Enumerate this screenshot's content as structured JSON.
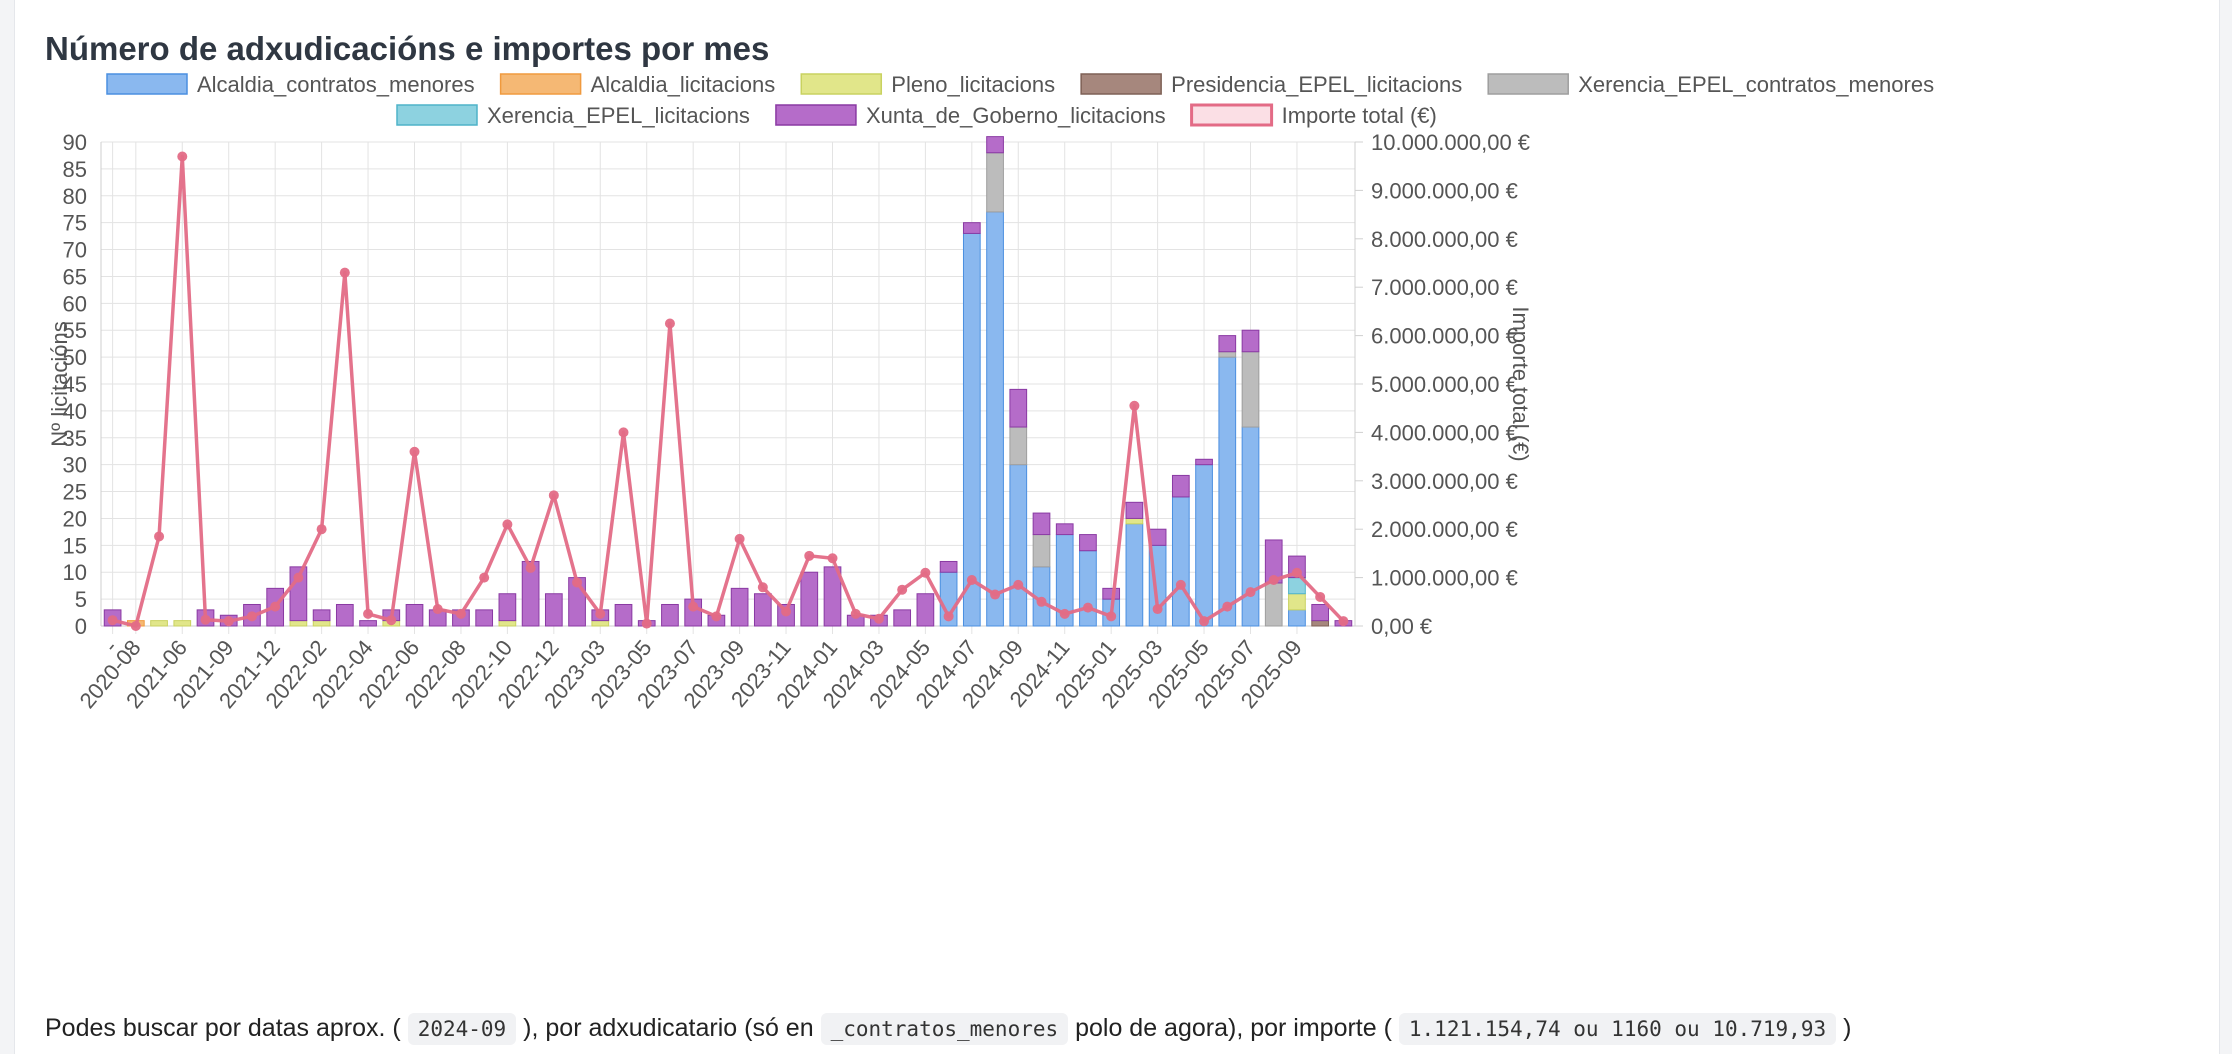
{
  "page": {
    "title": "Número de adxudicacións e importes por mes",
    "note": {
      "t1": "Podes buscar por datas aprox. (",
      "c1": "2024-09",
      "t2": "), por adxudicatario (só en",
      "c2": "_contratos_menores",
      "t3": "polo de agora), por importe (",
      "c3": "1.121.154,74 ou 1160 ou 10.719,93",
      "t4": ")"
    }
  },
  "chart_data": {
    "type": "bar",
    "stacked": true,
    "ylabel": "Nº licitacións",
    "y2label": "Importe total (€)",
    "ylim": [
      0,
      90
    ],
    "y2lim": [
      0,
      10000000
    ],
    "yticks": [
      "0",
      "5",
      "10",
      "15",
      "20",
      "25",
      "30",
      "35",
      "40",
      "45",
      "50",
      "55",
      "60",
      "65",
      "70",
      "75",
      "80",
      "85",
      "90"
    ],
    "y2ticks": [
      "0,00 €",
      "1.000.000,00 €",
      "2.000.000,00 €",
      "3.000.000,00 €",
      "4.000.000,00 €",
      "5.000.000,00 €",
      "6.000.000,00 €",
      "7.000.000,00 €",
      "8.000.000,00 €",
      "9.000.000,00 €",
      "10.000.000,00 €"
    ],
    "grid": true,
    "legend_position": "top",
    "x_tick_labels": [
      {
        "index": 0,
        "label": "-"
      },
      {
        "index": 1,
        "label": "2020-08"
      },
      {
        "index": 3,
        "label": "2021-06"
      },
      {
        "index": 5,
        "label": "2021-09"
      },
      {
        "index": 7,
        "label": "2021-12"
      },
      {
        "index": 9,
        "label": "2022-02"
      },
      {
        "index": 11,
        "label": "2022-04"
      },
      {
        "index": 13,
        "label": "2022-06"
      },
      {
        "index": 15,
        "label": "2022-08"
      },
      {
        "index": 17,
        "label": "2022-10"
      },
      {
        "index": 19,
        "label": "2022-12"
      },
      {
        "index": 21,
        "label": "2023-03"
      },
      {
        "index": 23,
        "label": "2023-05"
      },
      {
        "index": 25,
        "label": "2023-07"
      },
      {
        "index": 27,
        "label": "2023-09"
      },
      {
        "index": 29,
        "label": "2023-11"
      },
      {
        "index": 31,
        "label": "2024-01"
      },
      {
        "index": 33,
        "label": "2024-03"
      },
      {
        "index": 35,
        "label": "2024-05"
      },
      {
        "index": 37,
        "label": "2024-07"
      },
      {
        "index": 39,
        "label": "2024-09"
      },
      {
        "index": 41,
        "label": "2024-11"
      },
      {
        "index": 43,
        "label": "2025-01"
      },
      {
        "index": 45,
        "label": "2025-03"
      },
      {
        "index": 47,
        "label": "2025-05"
      },
      {
        "index": 49,
        "label": "2025-07"
      },
      {
        "index": 51,
        "label": "2025-09"
      }
    ],
    "series": [
      {
        "name": "Alcaldia_contratos_menores",
        "fill": "#8ab8ef",
        "stroke": "#4b8fe0",
        "values": [
          0,
          0,
          0,
          0,
          0,
          0,
          0,
          0,
          0,
          0,
          0,
          0,
          0,
          0,
          0,
          0,
          0,
          0,
          0,
          0,
          0,
          0,
          0,
          0,
          0,
          0,
          0,
          0,
          0,
          0,
          0,
          0,
          0,
          0,
          0,
          0,
          10,
          73,
          77,
          30,
          11,
          17,
          14,
          5,
          19,
          15,
          24,
          30,
          50,
          37,
          0,
          3,
          0,
          0
        ]
      },
      {
        "name": "Alcaldia_licitacions",
        "fill": "#f5b874",
        "stroke": "#f09a3e",
        "values": [
          0,
          1,
          0,
          0,
          0,
          0,
          0,
          0,
          0,
          0,
          0,
          0,
          0,
          0,
          0,
          0,
          0,
          0,
          0,
          0,
          0,
          0,
          0,
          0,
          0,
          0,
          0,
          0,
          0,
          0,
          0,
          0,
          0,
          0,
          0,
          0,
          0,
          0,
          0,
          0,
          0,
          0,
          0,
          0,
          0,
          0,
          0,
          0,
          0,
          0,
          0,
          0,
          0,
          0
        ]
      },
      {
        "name": "Pleno_licitacions",
        "fill": "#e1e68a",
        "stroke": "#c9d260",
        "values": [
          0,
          0,
          1,
          1,
          0,
          0,
          0,
          0,
          1,
          1,
          0,
          0,
          1,
          0,
          0,
          0,
          0,
          1,
          0,
          0,
          0,
          1,
          0,
          0,
          0,
          0,
          0,
          0,
          0,
          0,
          0,
          0,
          0,
          0,
          0,
          0,
          0,
          0,
          0,
          0,
          0,
          0,
          0,
          0,
          1,
          0,
          0,
          0,
          0,
          0,
          0,
          3,
          0,
          0
        ]
      },
      {
        "name": "Presidencia_EPEL_licitacions",
        "fill": "#a6877d",
        "stroke": "#7f6156",
        "values": [
          0,
          0,
          0,
          0,
          0,
          0,
          0,
          0,
          0,
          0,
          0,
          0,
          0,
          0,
          0,
          0,
          0,
          0,
          0,
          0,
          0,
          0,
          0,
          0,
          0,
          0,
          0,
          0,
          0,
          0,
          0,
          0,
          0,
          0,
          0,
          0,
          0,
          0,
          0,
          0,
          0,
          0,
          0,
          0,
          0,
          0,
          0,
          0,
          0,
          0,
          0,
          0,
          1,
          0
        ]
      },
      {
        "name": "Xerencia_EPEL_contratos_menores",
        "fill": "#bcbcbc",
        "stroke": "#9e9e9e",
        "values": [
          0,
          0,
          0,
          0,
          0,
          0,
          0,
          0,
          0,
          0,
          0,
          0,
          0,
          0,
          0,
          0,
          0,
          0,
          0,
          0,
          0,
          0,
          0,
          0,
          0,
          0,
          0,
          0,
          0,
          0,
          0,
          0,
          0,
          0,
          0,
          0,
          0,
          0,
          11,
          7,
          6,
          0,
          0,
          0,
          0,
          0,
          0,
          0,
          1,
          14,
          8,
          0,
          0,
          0
        ]
      },
      {
        "name": "Xerencia_EPEL_licitacions",
        "fill": "#8dd2e0",
        "stroke": "#4fb3c9",
        "values": [
          0,
          0,
          0,
          0,
          0,
          0,
          0,
          0,
          0,
          0,
          0,
          0,
          0,
          0,
          0,
          0,
          0,
          0,
          0,
          0,
          0,
          0,
          0,
          0,
          0,
          0,
          0,
          0,
          0,
          0,
          0,
          0,
          0,
          0,
          0,
          0,
          0,
          0,
          0,
          0,
          0,
          0,
          0,
          0,
          0,
          0,
          0,
          0,
          0,
          0,
          0,
          3,
          0,
          0
        ]
      },
      {
        "name": "Xunta_de_Goberno_licitacions",
        "fill": "#b56cc9",
        "stroke": "#8a3aa3",
        "values": [
          3,
          0,
          0,
          0,
          3,
          2,
          4,
          7,
          10,
          2,
          4,
          1,
          2,
          4,
          3,
          3,
          3,
          5,
          12,
          6,
          9,
          2,
          4,
          1,
          4,
          5,
          2,
          7,
          6,
          4,
          10,
          11,
          2,
          2,
          3,
          6,
          2,
          2,
          3,
          7,
          4,
          2,
          3,
          2,
          3,
          3,
          4,
          1,
          3,
          4,
          8,
          4,
          3,
          1
        ]
      },
      {
        "name": "Importe total (€)",
        "type": "line",
        "color": "#e36b86",
        "values": [
          120000,
          0,
          1850000,
          9700000,
          130000,
          100000,
          200000,
          400000,
          1000000,
          2000000,
          7300000,
          250000,
          120000,
          3600000,
          350000,
          250000,
          1000000,
          2100000,
          1200000,
          2700000,
          900000,
          250000,
          4000000,
          50000,
          6250000,
          400000,
          200000,
          1800000,
          800000,
          300000,
          1450000,
          1400000,
          250000,
          150000,
          750000,
          1100000,
          200000,
          950000,
          650000,
          850000,
          500000,
          250000,
          380000,
          200000,
          4550000,
          350000,
          850000,
          100000,
          400000,
          700000,
          950000,
          1100000,
          600000,
          100000
        ]
      }
    ]
  }
}
